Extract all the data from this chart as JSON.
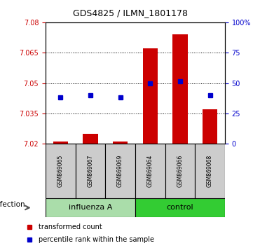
{
  "title": "GDS4825 / ILMN_1801178",
  "samples": [
    "GSM869065",
    "GSM869067",
    "GSM869069",
    "GSM869064",
    "GSM869066",
    "GSM869068"
  ],
  "group_labels": [
    "influenza A",
    "control"
  ],
  "bar_values": [
    7.021,
    7.025,
    7.021,
    7.067,
    7.074,
    7.037
  ],
  "blue_values": [
    7.043,
    7.044,
    7.043,
    7.05,
    7.051,
    7.044
  ],
  "ymin": 7.02,
  "ymax": 7.08,
  "yticks": [
    7.02,
    7.035,
    7.05,
    7.065,
    7.08
  ],
  "ytick_labels": [
    "7.02",
    "7.035",
    "7.05",
    "7.065",
    "7.08"
  ],
  "right_yticks": [
    0,
    25,
    50,
    75,
    100
  ],
  "right_ytick_labels": [
    "0",
    "25",
    "50",
    "75",
    "100%"
  ],
  "bar_color": "#CC0000",
  "blue_color": "#0000CC",
  "tick_color_left": "#CC0000",
  "tick_color_right": "#0000CC",
  "sample_box_color": "#CCCCCC",
  "group_color1": "#AADDAA",
  "group_color2": "#33CC33",
  "legend_red_label": "transformed count",
  "legend_blue_label": "percentile rank within the sample",
  "infection_label": "infection",
  "title_fontsize": 9,
  "axis_fontsize": 7,
  "sample_fontsize": 5.5,
  "group_fontsize": 8,
  "legend_fontsize": 7
}
